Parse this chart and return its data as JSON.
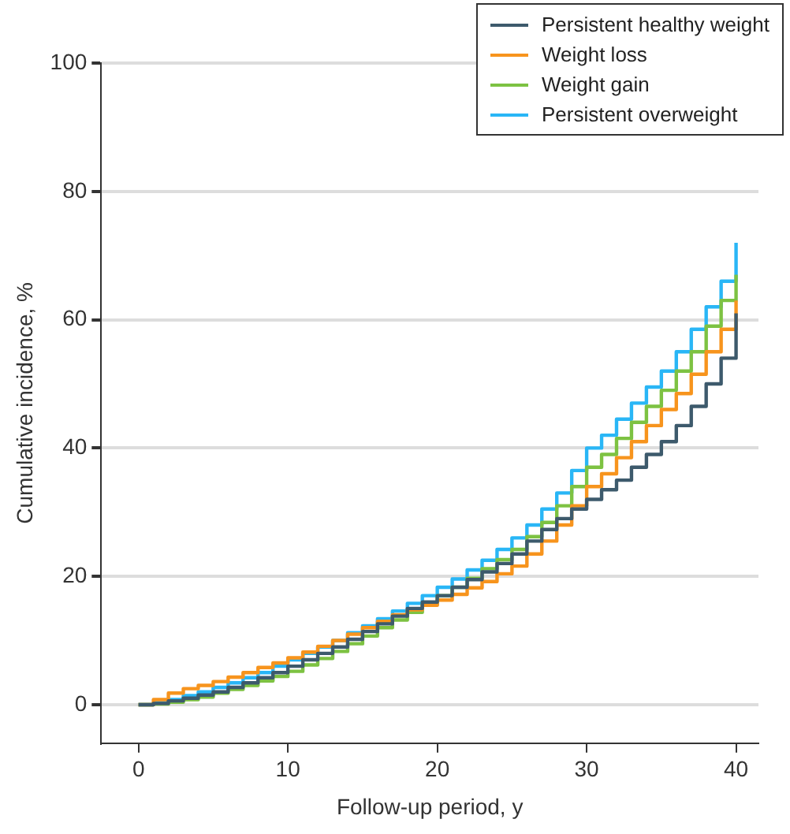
{
  "chart_data": {
    "type": "step",
    "xlabel": "Follow-up period, y",
    "ylabel": "Cumulative incidence, %",
    "x": [
      0,
      1,
      2,
      3,
      4,
      5,
      6,
      7,
      8,
      9,
      10,
      11,
      12,
      13,
      14,
      15,
      16,
      17,
      18,
      19,
      20,
      21,
      22,
      23,
      24,
      25,
      26,
      27,
      28,
      29,
      30,
      31,
      32,
      33,
      34,
      35,
      36,
      37,
      38,
      39,
      40
    ],
    "series": [
      {
        "name": "Persistent healthy weight",
        "color": "#3d5a6c",
        "values": [
          0,
          0.2,
          0.6,
          1,
          1.5,
          2,
          2.7,
          3.4,
          4.2,
          5,
          6,
          7,
          8,
          9,
          10.2,
          11.4,
          12.6,
          13.8,
          15,
          16,
          17,
          18.3,
          19.5,
          20.7,
          22,
          23.5,
          25.5,
          27.3,
          29,
          30.5,
          32,
          33.5,
          35,
          37,
          39,
          41,
          43.5,
          46.5,
          50,
          54,
          61
        ]
      },
      {
        "name": "Weight loss",
        "color": "#f7941d",
        "values": [
          0,
          0.8,
          1.8,
          2.5,
          3,
          3.6,
          4.3,
          5,
          5.8,
          6.5,
          7.3,
          8.2,
          9.1,
          10,
          11,
          12,
          13,
          14,
          14.8,
          15.5,
          16.3,
          17.2,
          18.2,
          19.2,
          20.4,
          21.6,
          23.5,
          25.5,
          28,
          31,
          34,
          36,
          38.5,
          41,
          43.5,
          46,
          48.5,
          51.5,
          55,
          58.5,
          63
        ]
      },
      {
        "name": "Weight gain",
        "color": "#7dc242",
        "values": [
          0,
          0.1,
          0.4,
          0.8,
          1.2,
          1.8,
          2.4,
          3,
          3.7,
          4.4,
          5.2,
          6.2,
          7.2,
          8.3,
          9.5,
          10.7,
          12,
          13.2,
          14.4,
          15.6,
          17,
          18.3,
          19.7,
          21.2,
          22.6,
          24.2,
          26.2,
          28.4,
          31,
          34,
          37,
          39,
          41.5,
          44,
          46.5,
          49,
          52,
          55,
          59,
          63,
          67
        ]
      },
      {
        "name": "Persistent overweight",
        "color": "#29b6f6",
        "values": [
          0,
          0.3,
          0.8,
          1.4,
          2,
          2.7,
          3.4,
          4.2,
          5,
          6,
          7,
          8,
          9,
          10,
          11.2,
          12.3,
          13.4,
          14.6,
          15.8,
          17,
          18.3,
          19.6,
          21,
          22.5,
          24.2,
          26,
          28,
          30.5,
          33,
          36.5,
          40,
          42,
          44.5,
          47,
          49.5,
          52,
          55,
          58.5,
          62,
          66,
          72
        ]
      }
    ],
    "xlim": [
      -2.5,
      41.5
    ],
    "xticks": [
      0,
      10,
      20,
      30,
      40
    ],
    "ylim": [
      -6,
      100
    ],
    "yticks": [
      0,
      20,
      40,
      60,
      80,
      100
    ],
    "grid": "y",
    "legend": "top right",
    "marker": "none",
    "line_style": "solid"
  }
}
